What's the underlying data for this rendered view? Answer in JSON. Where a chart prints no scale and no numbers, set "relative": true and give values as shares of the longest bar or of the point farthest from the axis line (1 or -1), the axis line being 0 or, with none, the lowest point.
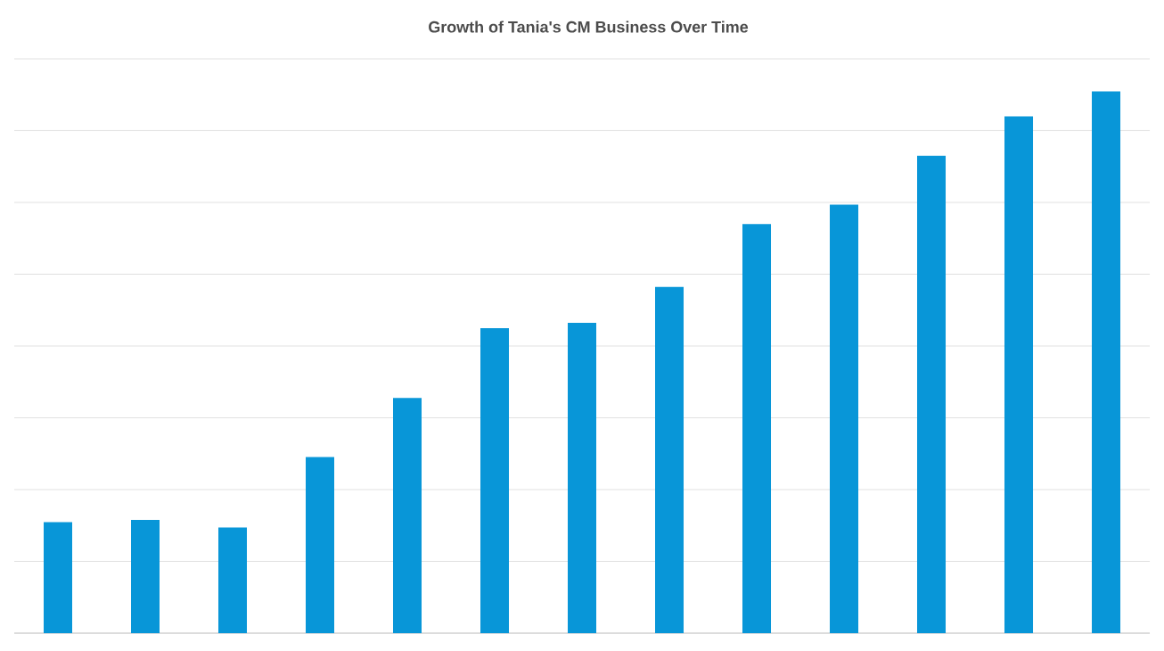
{
  "chart_data": {
    "type": "bar",
    "title": "Growth of Tania's CM Business Over Time",
    "categories": [
      null,
      null,
      null,
      null,
      null,
      null,
      null,
      null,
      null,
      null,
      null,
      null,
      null
    ],
    "values": [
      0.205,
      0.209,
      0.195,
      0.325,
      0.434,
      0.563,
      0.573,
      0.639,
      0.755,
      0.791,
      0.881,
      0.954,
      1.0
    ],
    "color": "#0896d8",
    "relative": true,
    "grid": "y"
  }
}
